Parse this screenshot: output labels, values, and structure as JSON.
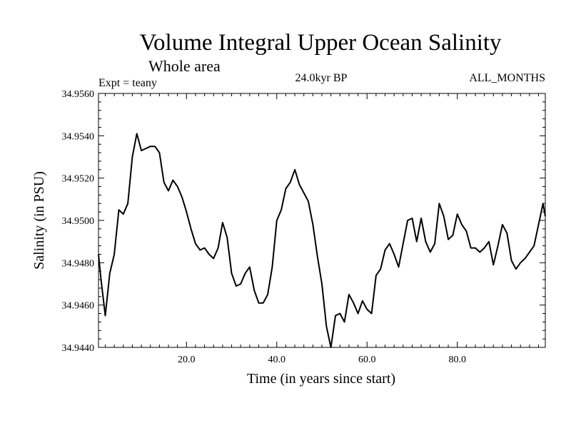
{
  "chart_data": {
    "type": "line",
    "title": "Volume Integral Upper Ocean Salinity",
    "subtitle": "Whole area",
    "expt_label": "Expt = teany",
    "period_label": "24.0kyr BP",
    "months_label": "ALL_MONTHS",
    "xlabel": "Time (in years since start)",
    "ylabel": "Salinity (in PSU)",
    "xlim": [
      0.5,
      99.5
    ],
    "ylim": [
      34.944,
      34.956
    ],
    "x_ticks": [
      20,
      40,
      60,
      80
    ],
    "x_tick_labels": [
      "20.0",
      "40.0",
      "60.0",
      "80.0"
    ],
    "y_ticks": [
      34.944,
      34.946,
      34.948,
      34.95,
      34.952,
      34.954,
      34.956
    ],
    "y_tick_labels": [
      "34.9440",
      "34.9460",
      "34.9480",
      "34.9500",
      "34.9520",
      "34.9540",
      "34.9560"
    ],
    "series": [
      {
        "name": "Salinity",
        "x": [
          0.5,
          1,
          2,
          3,
          4,
          5,
          6,
          7,
          8,
          9,
          10,
          11,
          12,
          13,
          14,
          15,
          16,
          17,
          18,
          19,
          20,
          21,
          22,
          23,
          24,
          25,
          26,
          27,
          28,
          29,
          30,
          31,
          32,
          33,
          34,
          35,
          36,
          37,
          38,
          39,
          40,
          41,
          42,
          43,
          44,
          45,
          46,
          47,
          48,
          49,
          50,
          51,
          52,
          53,
          54,
          55,
          56,
          57,
          58,
          59,
          60,
          61,
          62,
          63,
          64,
          65,
          66,
          67,
          68,
          69,
          70,
          71,
          72,
          73,
          74,
          75,
          76,
          77,
          78,
          79,
          80,
          81,
          82,
          83,
          84,
          85,
          86,
          87,
          88,
          89,
          90,
          91,
          92,
          93,
          94,
          95,
          96,
          97,
          98,
          99,
          99.5
        ],
        "y": [
          34.9484,
          34.9473,
          34.9455,
          34.9475,
          34.9484,
          34.9505,
          34.9503,
          34.9508,
          34.953,
          34.9541,
          34.9533,
          34.9534,
          34.9535,
          34.9535,
          34.9532,
          34.9518,
          34.9514,
          34.9519,
          34.9516,
          34.9511,
          34.9504,
          34.9496,
          34.9489,
          34.9486,
          34.9487,
          34.9484,
          34.9482,
          34.9487,
          34.9499,
          34.9492,
          34.9475,
          34.9469,
          34.947,
          34.9475,
          34.9478,
          34.9467,
          34.9461,
          34.9461,
          34.9465,
          34.9478,
          34.95,
          34.9505,
          34.9515,
          34.9518,
          34.9524,
          34.9517,
          34.9513,
          34.9509,
          34.9498,
          34.9483,
          34.947,
          34.945,
          34.944,
          34.9455,
          34.9456,
          34.9452,
          34.9465,
          34.9461,
          34.9456,
          34.9462,
          34.9458,
          34.9456,
          34.9474,
          34.9477,
          34.9486,
          34.9489,
          34.9484,
          34.9478,
          34.9489,
          34.95,
          34.9501,
          34.949,
          34.9501,
          34.949,
          34.9485,
          34.9489,
          34.9508,
          34.9502,
          34.9491,
          34.9493,
          34.9503,
          34.9498,
          34.9495,
          34.9487,
          34.9487,
          34.9485,
          34.9487,
          34.949,
          34.9479,
          34.9488,
          34.9498,
          34.9494,
          34.9481,
          34.9477,
          34.948,
          34.9482,
          34.9485,
          34.9488,
          34.9498,
          34.9508,
          34.9502
        ]
      }
    ]
  }
}
